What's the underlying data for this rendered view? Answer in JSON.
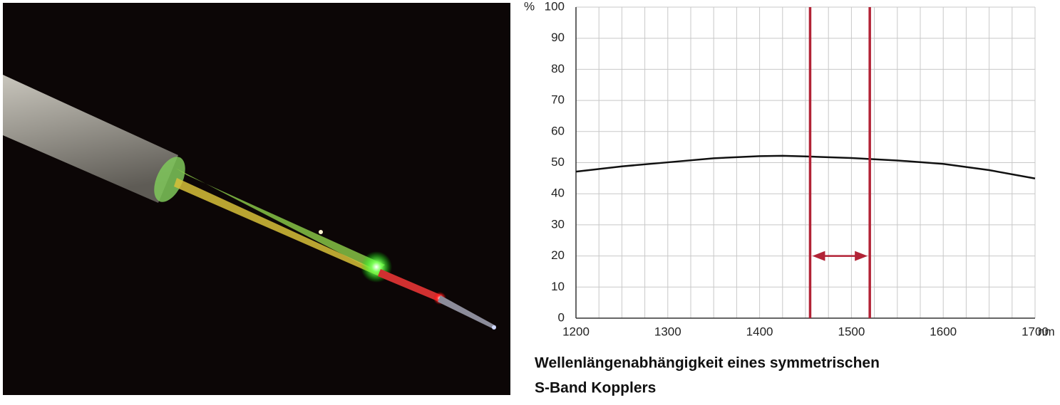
{
  "chart_data": {
    "type": "line",
    "caption": [
      "Wellenlängenabhängigkeit eines symmetrischen",
      "S-Band Kopplers"
    ],
    "x_unit": "nm",
    "y_unit": "%",
    "x": [
      1200,
      1250,
      1300,
      1350,
      1400,
      1425,
      1450,
      1500,
      1550,
      1600,
      1650,
      1700
    ],
    "series": [
      {
        "color": "#111111",
        "values": [
          47.1,
          48.8,
          50.1,
          51.4,
          52.1,
          52.2,
          52.0,
          51.5,
          50.7,
          49.6,
          47.6,
          44.9
        ]
      }
    ],
    "xlim": [
      1200,
      1700
    ],
    "xticks": [
      1200,
      1300,
      1400,
      1500,
      1600,
      1700
    ],
    "x_minor_ticks": [
      1225,
      1250,
      1275,
      1325,
      1350,
      1375,
      1425,
      1450,
      1475,
      1525,
      1550,
      1575,
      1625,
      1650,
      1675
    ],
    "ylim": [
      0,
      100
    ],
    "yticks": [
      0,
      10,
      20,
      30,
      40,
      50,
      60,
      70,
      80,
      90,
      100
    ],
    "grid": true,
    "band": {
      "x": [
        1455,
        1520
      ],
      "arrow_y": 20,
      "color": "#b22336"
    }
  }
}
